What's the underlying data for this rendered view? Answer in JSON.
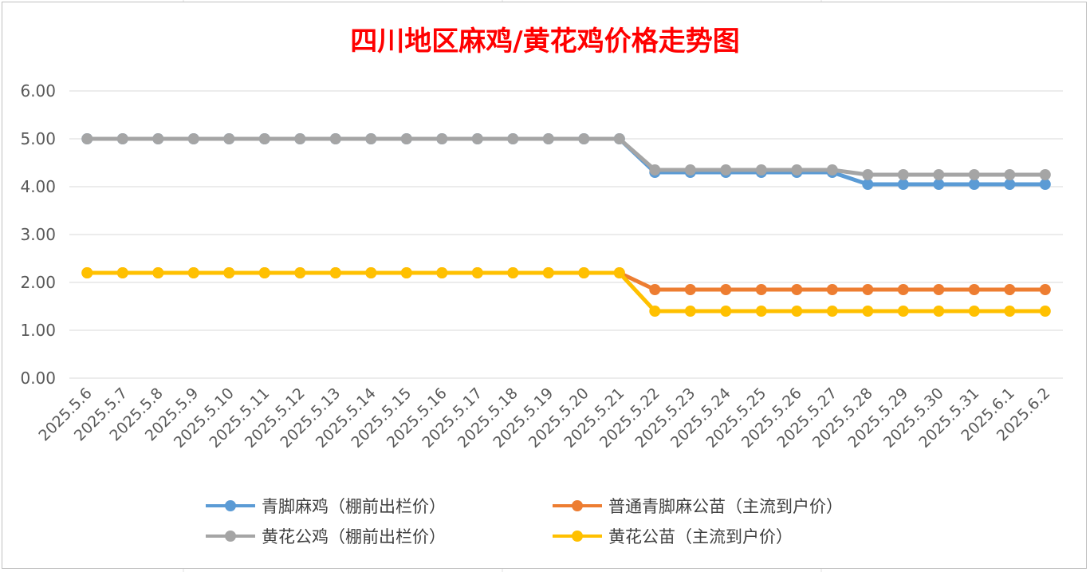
{
  "chart_data": {
    "type": "line",
    "title": "四川地区麻鸡/黄花鸡价格走势图",
    "categories": [
      "2025.5.6",
      "2025.5.7",
      "2025.5.8",
      "2025.5.9",
      "2025.5.10",
      "2025.5.11",
      "2025.5.12",
      "2025.5.13",
      "2025.5.14",
      "2025.5.15",
      "2025.5.16",
      "2025.5.17",
      "2025.5.18",
      "2025.5.19",
      "2025.5.20",
      "2025.5.21",
      "2025.5.22",
      "2025.5.23",
      "2025.5.24",
      "2025.5.25",
      "2025.5.26",
      "2025.5.27",
      "2025.5.28",
      "2025.5.29",
      "2025.5.30",
      "2025.5.31",
      "2025.6.1",
      "2025.6.2"
    ],
    "ylim": [
      0,
      6
    ],
    "yticks": [
      "0.00",
      "1.00",
      "2.00",
      "3.00",
      "4.00",
      "5.00",
      "6.00"
    ],
    "grid": true,
    "legend_position": "bottom",
    "series": [
      {
        "name": "青脚麻鸡（棚前出栏价）",
        "color": "#5b9bd5",
        "values": [
          5.0,
          5.0,
          5.0,
          5.0,
          5.0,
          5.0,
          5.0,
          5.0,
          5.0,
          5.0,
          5.0,
          5.0,
          5.0,
          5.0,
          5.0,
          5.0,
          4.3,
          4.3,
          4.3,
          4.3,
          4.3,
          4.3,
          4.05,
          4.05,
          4.05,
          4.05,
          4.05,
          4.05
        ]
      },
      {
        "name": "普通青脚麻公苗（主流到户价）",
        "color": "#ed7d31",
        "values": [
          2.2,
          2.2,
          2.2,
          2.2,
          2.2,
          2.2,
          2.2,
          2.2,
          2.2,
          2.2,
          2.2,
          2.2,
          2.2,
          2.2,
          2.2,
          2.2,
          1.85,
          1.85,
          1.85,
          1.85,
          1.85,
          1.85,
          1.85,
          1.85,
          1.85,
          1.85,
          1.85,
          1.85
        ]
      },
      {
        "name": "黄花公鸡（棚前出栏价）",
        "color": "#a5a5a5",
        "values": [
          5.0,
          5.0,
          5.0,
          5.0,
          5.0,
          5.0,
          5.0,
          5.0,
          5.0,
          5.0,
          5.0,
          5.0,
          5.0,
          5.0,
          5.0,
          5.0,
          4.35,
          4.35,
          4.35,
          4.35,
          4.35,
          4.35,
          4.25,
          4.25,
          4.25,
          4.25,
          4.25,
          4.25
        ]
      },
      {
        "name": "黄花公苗（主流到户价）",
        "color": "#ffc000",
        "values": [
          2.2,
          2.2,
          2.2,
          2.2,
          2.2,
          2.2,
          2.2,
          2.2,
          2.2,
          2.2,
          2.2,
          2.2,
          2.2,
          2.2,
          2.2,
          2.2,
          1.4,
          1.4,
          1.4,
          1.4,
          1.4,
          1.4,
          1.4,
          1.4,
          1.4,
          1.4,
          1.4,
          1.4
        ]
      }
    ]
  }
}
